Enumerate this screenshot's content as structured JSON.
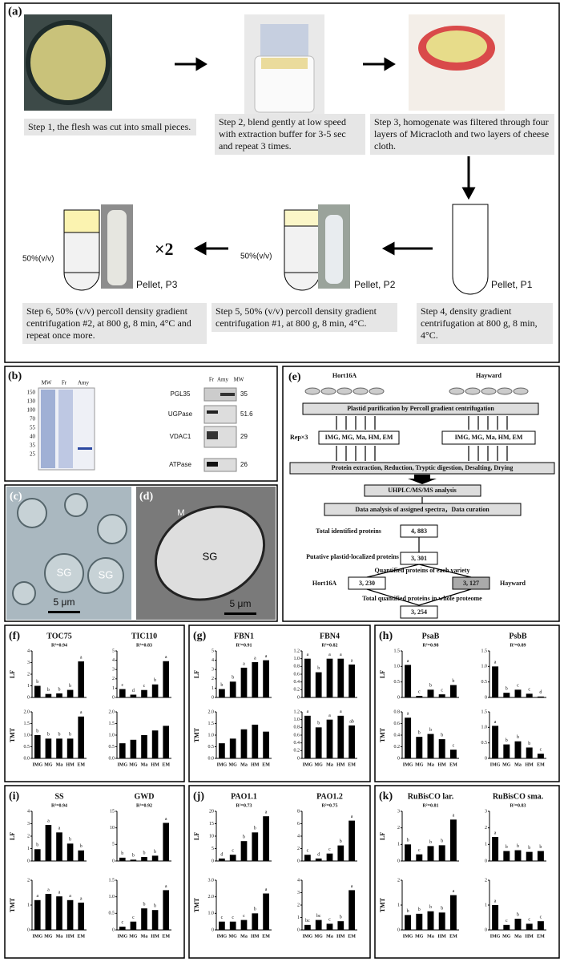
{
  "panel_a": {
    "label": "(a)",
    "steps": [
      "Step 1, the flesh was cut into small pieces.",
      "Step 2, blend gently at low speed with extraction buffer for 3-5 sec  and repeat 3 times.",
      "Step 3, homogenate was filtered through four layers of Micracloth and two layers of cheese cloth.",
      "Step 4, density gradient centrifugation at 800 g, 8 min, 4°C.",
      "Step 5, 50% (v/v) percoll density gradient centrifugation #1, at 800 g, 8 min, 4°C.",
      "Step 6, 50% (v/v) percoll density gradient centrifugation #2, at 800 g, 8 min, 4°C and repeat once more."
    ],
    "percoll": [
      "50%(v/v)",
      "50%(v/v)"
    ],
    "repeat": "×2",
    "pellets": [
      "Pellet, P1",
      "Pellet, P2",
      "Pellet, P3"
    ]
  },
  "panel_b": {
    "label": "(b)",
    "gel_lanes": [
      "MW",
      "Fr",
      "Amy"
    ],
    "markers": [
      150,
      130,
      100,
      70,
      55,
      40,
      35,
      25
    ],
    "blot_lanes": [
      "Fr",
      "Amy",
      "MW"
    ],
    "blot_rows": [
      [
        "PGL35",
        "35"
      ],
      [
        "UGPase",
        "51.6"
      ],
      [
        "VDAC1",
        "29"
      ],
      [
        "ATPase",
        "26"
      ]
    ]
  },
  "panel_c": {
    "label": "(c)",
    "marks": [
      "SG",
      "SG"
    ],
    "scale": "5 μm"
  },
  "panel_d": {
    "label": "(d)",
    "marks": [
      "M",
      "SG"
    ],
    "scale": "5 μm"
  },
  "panel_e": {
    "label": "(e)",
    "varieties": [
      "Hort16A",
      "Hayward"
    ],
    "purification": "Plastid purification by Percoll gradient centrifugation",
    "rep": "Rep×3",
    "stages": [
      "IMG, MG, Ma, HM, EM",
      "IMG, MG, Ma, HM, EM"
    ],
    "prep": "Protein extraction, Reduction, Tryptic digestion, Desalting, Drying",
    "ms": "UHPLC/MS/MS analysis",
    "analysis": "Data analysis of assigned spectra，Data curation",
    "identified": "Total identified proteins",
    "identified_n": "4, 883",
    "plastid": "Putative plastid-localized proteins",
    "plastid_n": "3, 301",
    "quantified": "Quantified proteins of each variety",
    "hort_n": "3, 230",
    "hay_n": "3, 127",
    "total": "Total quantified proteins in whole proteome",
    "total_n": "3, 254"
  },
  "categories": [
    "IMG",
    "MG",
    "Ma",
    "HM",
    "EM"
  ],
  "bar_panels": [
    {
      "label": "(f)",
      "ylabels": [
        "LF",
        "TMT"
      ],
      "charts": [
        {
          "title": "TOC75",
          "r2": "R²=0.94",
          "plots": [
            {
              "type": "bar",
              "ylim": [
                0,
                4
              ],
              "yticks": [
                0,
                1,
                2,
                3,
                4
              ],
              "values": [
                1.0,
                0.3,
                0.35,
                0.65,
                3.1
              ],
              "letters": [
                "b",
                "b",
                "b",
                "b",
                "a"
              ]
            },
            {
              "type": "bar",
              "ylim": [
                0,
                2
              ],
              "yticks": [
                {
                  "value": 0,
                  "label": "0.0"
                },
                0.5,
                {
                  "value": 1,
                  "label": "1.0"
                },
                1.5,
                {
                  "value": 2,
                  "label": "2.0"
                }
              ],
              "values": [
                1.0,
                0.85,
                0.85,
                0.85,
                1.8
              ],
              "letters": [
                "b",
                "b",
                "b",
                "b",
                "a"
              ]
            }
          ]
        },
        {
          "title": "TIC110",
          "r2": "R²=0.83",
          "plots": [
            {
              "type": "bar",
              "ylim": [
                0,
                5
              ],
              "yticks": [
                0,
                1,
                2,
                3,
                4,
                5
              ],
              "values": [
                0.9,
                0.3,
                0.8,
                1.4,
                3.9
              ],
              "letters": [
                "c",
                "d",
                "c",
                "b",
                "a"
              ]
            },
            {
              "type": "bar",
              "ylim": [
                0,
                2
              ],
              "yticks": [
                {
                  "value": 0,
                  "label": "0.0"
                },
                0.5,
                {
                  "value": 1,
                  "label": "1.0"
                },
                1.5,
                {
                  "value": 2,
                  "label": "2.0"
                }
              ],
              "values": [
                0.65,
                0.8,
                1.0,
                1.2,
                1.4
              ]
            }
          ]
        }
      ]
    },
    {
      "label": "(g)",
      "ylabels": [
        "LF",
        "TMT"
      ],
      "charts": [
        {
          "title": "FBN1",
          "r2": "R²=0.91",
          "plots": [
            {
              "type": "bar",
              "ylim": [
                0,
                5
              ],
              "yticks": [
                0,
                1,
                2,
                3,
                4,
                5
              ],
              "values": [
                0.9,
                1.7,
                3.2,
                3.8,
                4.0
              ],
              "letters": [
                "b",
                "b",
                "a",
                "a",
                "a"
              ]
            },
            {
              "type": "bar",
              "ylim": [
                0,
                2
              ],
              "yticks": [
                {
                  "value": 0,
                  "label": "0.0"
                },
                0.5,
                {
                  "value": 1,
                  "label": "1.0"
                },
                1.5,
                {
                  "value": 2,
                  "label": "2.0"
                }
              ],
              "values": [
                0.65,
                0.85,
                1.25,
                1.45,
                1.15
              ]
            }
          ]
        },
        {
          "title": "FBN4",
          "r2": "R²=0.82",
          "plots": [
            {
              "type": "bar",
              "ylim": [
                0,
                1.2
              ],
              "yticks": [
                0,
                0.2,
                0.4,
                0.6,
                0.8,
                {
                  "value": 1,
                  "label": "1.0"
                },
                1.2
              ],
              "values": [
                1.0,
                0.65,
                1.0,
                1.0,
                0.85
              ],
              "letters": [
                "a",
                "b",
                "a",
                "a",
                "a"
              ]
            },
            {
              "type": "bar",
              "ylim": [
                0,
                1.2
              ],
              "yticks": [
                0,
                0.2,
                0.4,
                0.6,
                0.8,
                {
                  "value": 1,
                  "label": "1.0"
                },
                1.2
              ],
              "values": [
                1.1,
                0.8,
                1.0,
                1.1,
                0.85
              ],
              "letters": [
                "a",
                "b",
                "a",
                "a",
                "ab"
              ]
            }
          ]
        }
      ]
    },
    {
      "label": "(h)",
      "ylabels": [
        "LF",
        "TMT"
      ],
      "charts": [
        {
          "title": "PsaB",
          "r2": "R²=0.98",
          "plots": [
            {
              "type": "bar",
              "ylim": [
                0,
                1.5
              ],
              "yticks": [
                0,
                0.5,
                {
                  "value": 1,
                  "label": "1.0"
                },
                1.5
              ],
              "values": [
                1.05,
                0.05,
                0.25,
                0.1,
                0.4
              ],
              "letters": [
                "a",
                "c",
                "b",
                "c",
                "b"
              ]
            },
            {
              "type": "bar",
              "ylim": [
                0,
                0.8
              ],
              "yticks": [
                0,
                0.2,
                0.4,
                0.6,
                0.8
              ],
              "values": [
                0.7,
                0.37,
                0.42,
                0.33,
                0.15
              ],
              "letters": [
                "a",
                "b",
                "b",
                "b",
                "c"
              ]
            }
          ]
        },
        {
          "title": "PsbB",
          "r2": "R²=0.89",
          "plots": [
            {
              "type": "bar",
              "ylim": [
                0,
                1.5
              ],
              "yticks": [
                0,
                0.5,
                {
                  "value": 1,
                  "label": "1.0"
                },
                1.5
              ],
              "values": [
                1.0,
                0.15,
                0.25,
                0.12,
                0.03
              ],
              "letters": [
                "a",
                "b",
                "c",
                "c",
                "d"
              ]
            },
            {
              "type": "bar",
              "ylim": [
                0,
                1.5
              ],
              "yticks": [
                0,
                0.5,
                {
                  "value": 1,
                  "label": "1.0"
                },
                1.5
              ],
              "values": [
                1.05,
                0.45,
                0.55,
                0.35,
                0.15
              ],
              "letters": [
                "a",
                "b",
                "b",
                "b",
                "c"
              ]
            }
          ]
        }
      ]
    },
    {
      "label": "(i)",
      "ylabels": [
        "LF",
        "TMT"
      ],
      "charts": [
        {
          "title": "SS",
          "r2": "R²=0.94",
          "plots": [
            {
              "type": "bar",
              "ylim": [
                0,
                4
              ],
              "yticks": [
                0,
                1,
                2,
                3,
                4
              ],
              "values": [
                0.95,
                2.9,
                2.3,
                1.4,
                0.85
              ],
              "letters": [
                "b",
                "a",
                "a",
                "b",
                "b"
              ]
            },
            {
              "type": "bar",
              "ylim": [
                0,
                2
              ],
              "yticks": [
                0,
                1,
                2
              ],
              "values": [
                1.2,
                1.45,
                1.35,
                1.2,
                1.1
              ],
              "letters": [
                "a",
                "a",
                "a",
                "a",
                "a"
              ]
            }
          ]
        },
        {
          "title": "GWD",
          "r2": "R²=0.92",
          "plots": [
            {
              "type": "bar",
              "ylim": [
                0,
                15
              ],
              "yticks": [
                0,
                5,
                10,
                15
              ],
              "values": [
                1.0,
                0.4,
                1.2,
                1.6,
                11.5
              ],
              "letters": [
                "b",
                "b",
                "b",
                "b",
                "a"
              ]
            },
            {
              "type": "bar",
              "ylim": [
                0,
                1.5
              ],
              "yticks": [
                0,
                0.5,
                {
                  "value": 1,
                  "label": "1.0"
                },
                1.5
              ],
              "values": [
                0.1,
                0.25,
                0.65,
                0.6,
                1.2
              ],
              "letters": [
                "c",
                "c",
                "b",
                "b",
                "a"
              ]
            }
          ]
        }
      ]
    },
    {
      "label": "(j)",
      "ylabels": [
        "LF",
        "TMT"
      ],
      "charts": [
        {
          "title": "PAO1.1",
          "r2": "R²=0.73",
          "plots": [
            {
              "type": "bar",
              "ylim": [
                0,
                20
              ],
              "yticks": [
                0,
                5,
                10,
                15,
                20
              ],
              "values": [
                1.0,
                2.5,
                8,
                11.5,
                18
              ],
              "letters": [
                "d",
                "c",
                "b",
                "b",
                "a"
              ]
            },
            {
              "type": "bar",
              "ylim": [
                0,
                3
              ],
              "yticks": [
                0,
                {
                  "value": 1,
                  "label": "1.0"
                },
                {
                  "value": 2,
                  "label": "2.0"
                },
                {
                  "value": 3,
                  "label": "3.0"
                }
              ],
              "values": [
                0.5,
                0.5,
                0.6,
                1.0,
                2.2
              ],
              "letters": [
                "c",
                "c",
                "c",
                "b",
                "a"
              ]
            }
          ]
        },
        {
          "title": "PAO1.2",
          "r2": "R²=0.75",
          "plots": [
            {
              "type": "bar",
              "ylim": [
                0,
                8
              ],
              "yticks": [
                0,
                2,
                4,
                6,
                8
              ],
              "values": [
                1.0,
                0.4,
                1.2,
                2.5,
                6.5
              ],
              "letters": [
                "c",
                "d",
                "c",
                "b",
                "a"
              ]
            },
            {
              "type": "bar",
              "ylim": [
                0,
                4
              ],
              "yticks": [
                0,
                1,
                2,
                3,
                4
              ],
              "values": [
                0.4,
                0.8,
                0.5,
                0.7,
                3.2
              ],
              "letters": [
                "bc",
                "bc",
                "c",
                "b",
                "a"
              ]
            }
          ]
        }
      ]
    },
    {
      "label": "(k)",
      "ylabels": [
        "LF",
        "TMT"
      ],
      "charts": [
        {
          "title": "RuBisCO lar.",
          "r2": "R²=0.81",
          "plots": [
            {
              "type": "bar",
              "ylim": [
                0,
                3
              ],
              "yticks": [
                0,
                1,
                2,
                3
              ],
              "values": [
                1.0,
                0.4,
                0.9,
                0.95,
                2.5
              ],
              "letters": [
                "b",
                "c",
                "b",
                "b",
                "a"
              ]
            },
            {
              "type": "bar",
              "ylim": [
                0,
                2
              ],
              "yticks": [
                0,
                1,
                2
              ],
              "values": [
                0.6,
                0.65,
                0.75,
                0.7,
                1.4
              ],
              "letters": [
                "b",
                "b",
                "b",
                "b",
                "a"
              ]
            }
          ]
        },
        {
          "title": "RuBisCO sma.",
          "r2": "R²=0.83",
          "plots": [
            {
              "type": "bar",
              "ylim": [
                0,
                3
              ],
              "yticks": [
                0,
                1,
                2,
                3
              ],
              "values": [
                1.45,
                0.6,
                0.65,
                0.55,
                0.6
              ],
              "letters": [
                "a",
                "b",
                "b",
                "b",
                "b"
              ]
            },
            {
              "type": "bar",
              "ylim": [
                0,
                2
              ],
              "yticks": [
                0,
                1,
                2
              ],
              "values": [
                1.0,
                0.2,
                0.45,
                0.25,
                0.35
              ],
              "letters": [
                "a",
                "c",
                "b",
                "c",
                "c"
              ]
            }
          ]
        }
      ]
    }
  ]
}
